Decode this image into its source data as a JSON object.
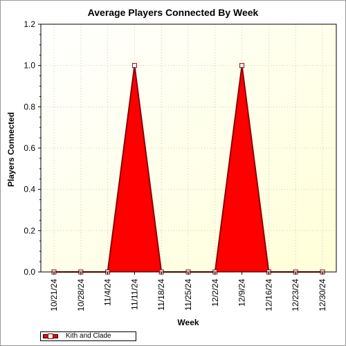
{
  "chart_data": {
    "type": "area",
    "title": "Average Players Connected By Week",
    "xlabel": "Week",
    "ylabel": "Players Connected",
    "categories": [
      "10/21/24",
      "10/28/24",
      "11/4/24",
      "11/11/24",
      "11/18/24",
      "11/25/24",
      "12/2/24",
      "12/9/24",
      "12/16/24",
      "12/23/24",
      "12/30/24"
    ],
    "series": [
      {
        "name": "Kith and Clade",
        "values": [
          0,
          0,
          0,
          1,
          0,
          0,
          0,
          1,
          0,
          0,
          0
        ],
        "color": "#ff0000",
        "outline": "#8b0000"
      }
    ],
    "ylim": [
      0,
      1.2
    ],
    "yticks": [
      "0.0",
      "0.2",
      "0.4",
      "0.6",
      "0.8",
      "1.0",
      "1.2"
    ],
    "grid": true,
    "legend_position": "bottom-left",
    "background_gradient": [
      "#ffffff",
      "#ffffd8"
    ]
  }
}
